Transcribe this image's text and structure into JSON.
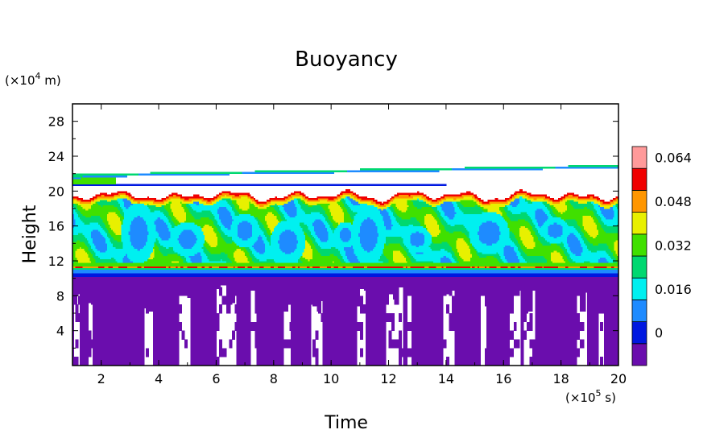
{
  "chart_data": {
    "type": "heatmap",
    "title": "Buoyancy",
    "xlabel": "Time",
    "ylabel": "Height",
    "x_unit": {
      "prefix": "(×10",
      "exp": "5",
      "suffix": " s)"
    },
    "y_unit": {
      "prefix": "(×10",
      "exp": "4",
      "suffix": " m)"
    },
    "xlim": [
      1,
      20
    ],
    "ylim": [
      0,
      30
    ],
    "x_ticks": [
      2,
      4,
      6,
      8,
      10,
      12,
      14,
      16,
      18,
      20
    ],
    "y_ticks": [
      4,
      8,
      12,
      16,
      20,
      24,
      28
    ],
    "x_tick_labels": [
      "2",
      "4",
      "6",
      "8",
      "10",
      "12",
      "14",
      "16",
      "18",
      "20"
    ],
    "y_tick_labels": [
      "4",
      "8",
      "12",
      "16",
      "20",
      "24",
      "28"
    ],
    "colorbar": {
      "levels": [
        -0.008,
        0,
        0.008,
        0.016,
        0.024,
        0.032,
        0.04,
        0.048,
        0.056,
        0.064,
        0.072
      ],
      "colors": [
        "#6a0dad",
        "#0018e0",
        "#1e8bff",
        "#00f0f0",
        "#00d870",
        "#40e000",
        "#e8f000",
        "#ff9600",
        "#f00000",
        "#ff9a9a"
      ],
      "labels": [
        "0",
        "0.016",
        "0.032",
        "0.048",
        "0.064"
      ],
      "label_values": [
        0,
        0.016,
        0.032,
        0.048,
        0.064
      ]
    },
    "bands": [
      {
        "description": "purple",
        "y_range": [
          0,
          10.3
        ],
        "value_range": [
          -0.008,
          0
        ]
      },
      {
        "description": "inversion",
        "y_range": [
          10.3,
          11.8
        ],
        "value_range": [
          0,
          0.064
        ]
      },
      {
        "description": "green/cyan",
        "y_range": [
          11.8,
          19.5
        ],
        "value_range": [
          0.016,
          0.048
        ]
      },
      {
        "description": "upper thin layer",
        "y_range": [
          20,
          23
        ],
        "value_range": [
          0,
          0.056
        ]
      }
    ]
  }
}
